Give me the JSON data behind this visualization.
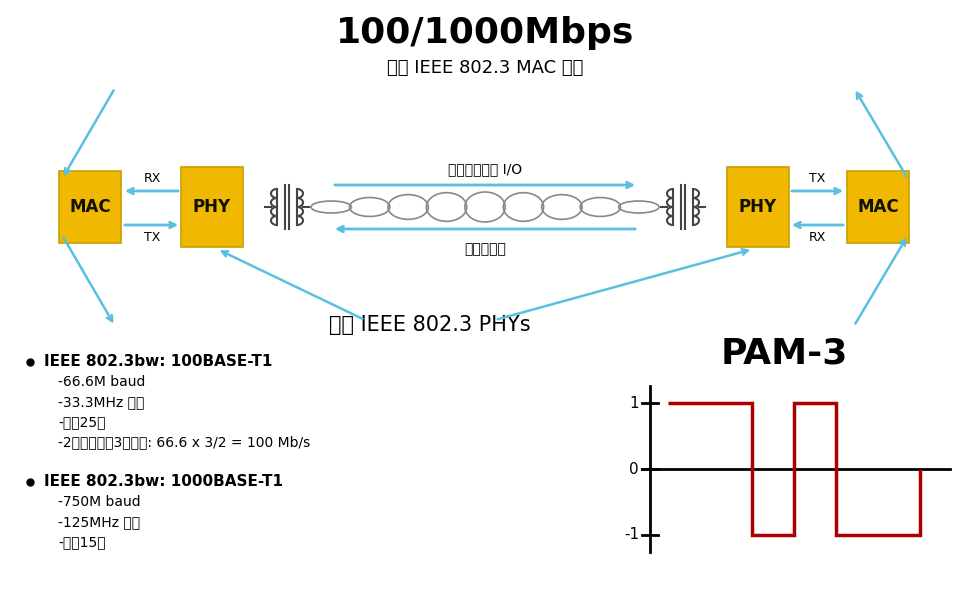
{
  "title": "100/1000Mbps",
  "subtitle1": "标准 IEEE 802.3 MAC 接口",
  "subtitle2": "标准 IEEE 802.3 PHYs",
  "label_mac": "MAC",
  "label_phy": "PHY",
  "label_rx": "RX",
  "label_tx": "TX",
  "label_full_duplex": "全双工物理层 I/O",
  "label_twisted_pair": "单对双绞线",
  "pam3_title": "PAM-3",
  "bullet1_title": "IEEE 802.3bw: 100BASE-T1",
  "bullet1_items": [
    "-66.6M baud",
    "-33.3MHz 时钟",
    "-最长25米",
    "-2个符号提供3位信息: 66.6 x 3/2 = 100 Mb/s"
  ],
  "bullet2_title": "IEEE 802.3bw: 1000BASE-T1",
  "bullet2_items": [
    "-750M baud",
    "-125MHz 时钟",
    "-最长15米"
  ],
  "bg_color": "#ffffff",
  "box_color_gold": "#F0B800",
  "arrow_color": "#5BBFDF",
  "text_color": "#000000",
  "pam3_signal_color": "#AA0000",
  "transformer_color": "#444444"
}
